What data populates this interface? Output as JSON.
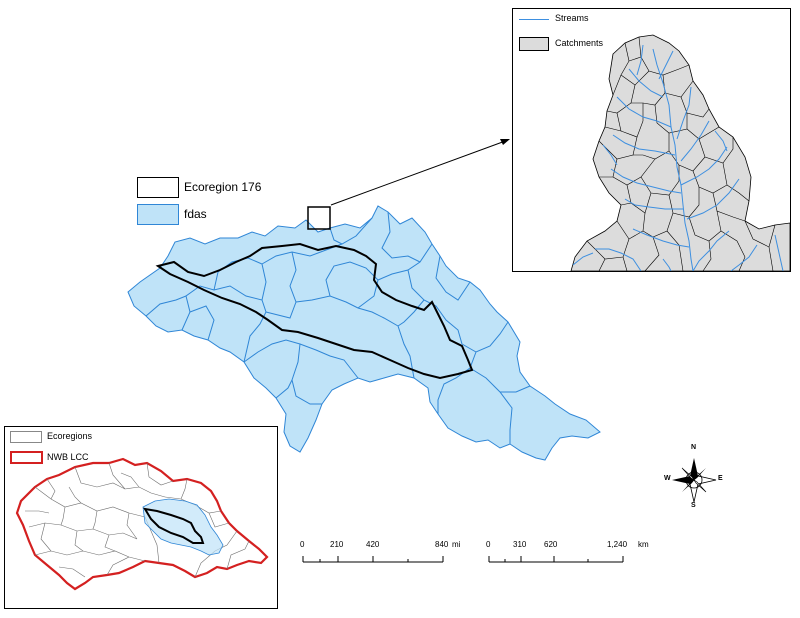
{
  "main_legend": {
    "ecoregion_label": "Ecoregion 176",
    "fdas_label": "fdas"
  },
  "inset_legend": {
    "streams_label": "Streams",
    "catchments_label": "Catchments"
  },
  "overview_legend": {
    "ecoregions_label": "Ecoregions",
    "nwb_label": "NWB LCC"
  },
  "scale_bar_miles": {
    "ticks": [
      "0",
      "210",
      "420",
      "840"
    ],
    "unit": "mi"
  },
  "scale_bar_km": {
    "ticks": [
      "0",
      "310",
      "620",
      "1,240"
    ],
    "unit": "km"
  },
  "north_arrow": {
    "n": "N",
    "s": "S",
    "e": "E",
    "w": "W"
  },
  "colors": {
    "fdas_fill": "#bfe3f8",
    "fdas_stroke": "#2f86d6",
    "ecoregion_stroke": "#000000",
    "catchment_fill": "#dcdcdc",
    "stream": "#3d8fe0",
    "nwb_stroke": "#d42020"
  },
  "icons": [
    "north-arrow-icon"
  ]
}
